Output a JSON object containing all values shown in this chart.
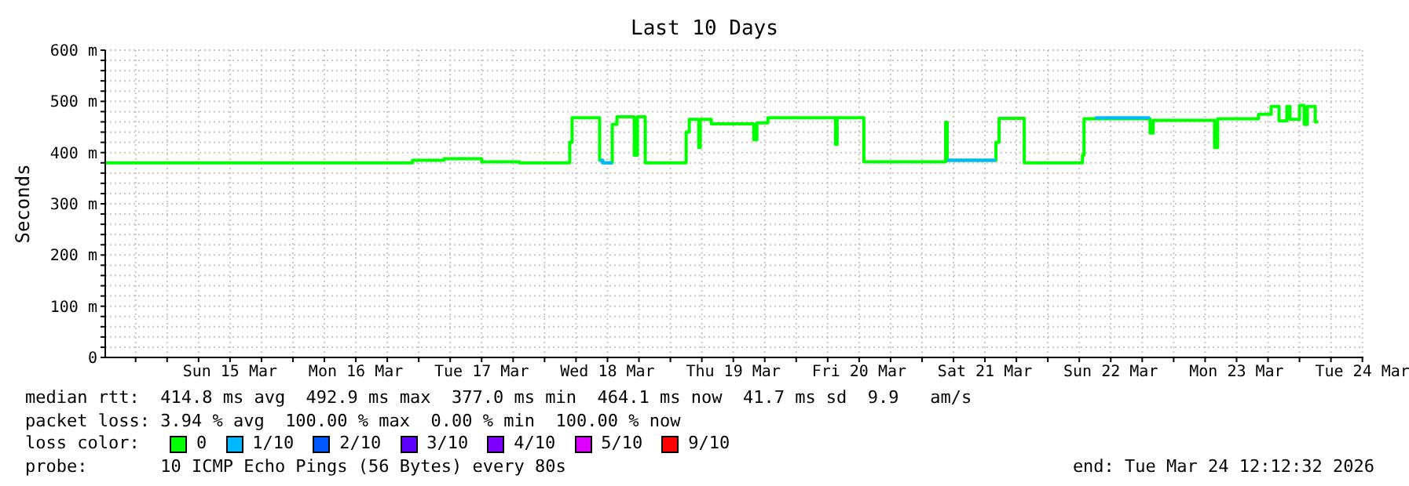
{
  "chart_data": {
    "type": "step",
    "title": "Last 10 Days",
    "ylabel": "Seconds",
    "legend_title": "loss color:",
    "legend": "bottom",
    "grid": true,
    "xlim": [
      "2026-03-14T12:12",
      "2026-03-24T12:12"
    ],
    "xticks": [
      {
        "value": "2026-03-14T18:00",
        "label": null
      },
      {
        "value": "2026-03-15T00:00",
        "label": null
      },
      {
        "value": "2026-03-15T06:00",
        "label": null
      },
      {
        "value": "2026-03-15T12:00",
        "label": "Sun 15 Mar"
      },
      {
        "value": "2026-03-15T18:00",
        "label": null
      },
      {
        "value": "2026-03-16T00:00",
        "label": null
      },
      {
        "value": "2026-03-16T06:00",
        "label": null
      },
      {
        "value": "2026-03-16T12:00",
        "label": "Mon 16 Mar"
      },
      {
        "value": "2026-03-16T18:00",
        "label": null
      },
      {
        "value": "2026-03-17T00:00",
        "label": null
      },
      {
        "value": "2026-03-17T06:00",
        "label": null
      },
      {
        "value": "2026-03-17T12:00",
        "label": "Tue 17 Mar"
      },
      {
        "value": "2026-03-17T18:00",
        "label": null
      },
      {
        "value": "2026-03-18T00:00",
        "label": null
      },
      {
        "value": "2026-03-18T06:00",
        "label": null
      },
      {
        "value": "2026-03-18T12:00",
        "label": "Wed 18 Mar"
      },
      {
        "value": "2026-03-18T18:00",
        "label": null
      },
      {
        "value": "2026-03-19T00:00",
        "label": null
      },
      {
        "value": "2026-03-19T06:00",
        "label": null
      },
      {
        "value": "2026-03-19T12:00",
        "label": "Thu 19 Mar"
      },
      {
        "value": "2026-03-19T18:00",
        "label": null
      },
      {
        "value": "2026-03-20T00:00",
        "label": null
      },
      {
        "value": "2026-03-20T06:00",
        "label": null
      },
      {
        "value": "2026-03-20T12:00",
        "label": "Fri 20 Mar"
      },
      {
        "value": "2026-03-20T18:00",
        "label": null
      },
      {
        "value": "2026-03-21T00:00",
        "label": null
      },
      {
        "value": "2026-03-21T06:00",
        "label": null
      },
      {
        "value": "2026-03-21T12:00",
        "label": "Sat 21 Mar"
      },
      {
        "value": "2026-03-21T18:00",
        "label": null
      },
      {
        "value": "2026-03-22T00:00",
        "label": null
      },
      {
        "value": "2026-03-22T06:00",
        "label": null
      },
      {
        "value": "2026-03-22T12:00",
        "label": "Sun 22 Mar"
      },
      {
        "value": "2026-03-22T18:00",
        "label": null
      },
      {
        "value": "2026-03-23T00:00",
        "label": null
      },
      {
        "value": "2026-03-23T06:00",
        "label": null
      },
      {
        "value": "2026-03-23T12:00",
        "label": "Mon 23 Mar"
      },
      {
        "value": "2026-03-23T18:00",
        "label": null
      },
      {
        "value": "2026-03-24T00:00",
        "label": null
      },
      {
        "value": "2026-03-24T06:00",
        "label": null
      },
      {
        "value": "2026-03-24T12:00",
        "label": "Tue 24 Mar"
      }
    ],
    "ylim": [
      0,
      600
    ],
    "yticks": [
      {
        "value": 0,
        "label": "0"
      },
      {
        "value": 20,
        "label": null
      },
      {
        "value": 40,
        "label": null
      },
      {
        "value": 60,
        "label": null
      },
      {
        "value": 80,
        "label": null
      },
      {
        "value": 100,
        "label": "100 m"
      },
      {
        "value": 120,
        "label": null
      },
      {
        "value": 140,
        "label": null
      },
      {
        "value": 160,
        "label": null
      },
      {
        "value": 180,
        "label": null
      },
      {
        "value": 200,
        "label": "200 m"
      },
      {
        "value": 220,
        "label": null
      },
      {
        "value": 240,
        "label": null
      },
      {
        "value": 260,
        "label": null
      },
      {
        "value": 280,
        "label": null
      },
      {
        "value": 300,
        "label": "300 m"
      },
      {
        "value": 320,
        "label": null
      },
      {
        "value": 340,
        "label": null
      },
      {
        "value": 360,
        "label": null
      },
      {
        "value": 380,
        "label": null
      },
      {
        "value": 400,
        "label": "400 m"
      },
      {
        "value": 420,
        "label": null
      },
      {
        "value": 440,
        "label": null
      },
      {
        "value": 460,
        "label": null
      },
      {
        "value": 480,
        "label": null
      },
      {
        "value": 500,
        "label": "500 m"
      },
      {
        "value": 520,
        "label": null
      },
      {
        "value": 540,
        "label": null
      },
      {
        "value": 560,
        "label": null
      },
      {
        "value": 580,
        "label": null
      },
      {
        "value": 600,
        "label": "600 m"
      }
    ],
    "series": [
      {
        "name": "0",
        "color": "#00ff00",
        "x": [
          "2026-03-14T12:18",
          "2026-03-16T22:48",
          "2026-03-17T04:48",
          "2026-03-17T12:00",
          "2026-03-17T19:12",
          "2026-03-18T04:48",
          "2026-03-18T05:15",
          "2026-03-18T10:30",
          "2026-03-18T11:06",
          "2026-03-18T12:54",
          "2026-03-18T13:48",
          "2026-03-18T17:06",
          "2026-03-18T17:42",
          "2026-03-18T19:12",
          "2026-03-19T03:00",
          "2026-03-19T03:36",
          "2026-03-19T05:24",
          "2026-03-19T05:42",
          "2026-03-19T07:48",
          "2026-03-19T15:54",
          "2026-03-19T16:30",
          "2026-03-19T18:36",
          "2026-03-20T07:30",
          "2026-03-20T07:48",
          "2026-03-20T12:54",
          "2026-03-21T04:30",
          "2026-03-21T04:48",
          "2026-03-21T14:06",
          "2026-03-21T14:42",
          "2026-03-21T19:30",
          "2026-03-22T06:36",
          "2026-03-22T06:54",
          "2026-03-22T19:30",
          "2026-03-22T20:06",
          "2026-03-23T07:48",
          "2026-03-23T08:24",
          "2026-03-23T16:12",
          "2026-03-23T18:36",
          "2026-03-23T20:06",
          "2026-03-23T21:36",
          "2026-03-23T22:12",
          "2026-03-24T00:00",
          "2026-03-24T00:54",
          "2026-03-24T01:30",
          "2026-03-24T03:00",
          "2026-03-24T03:36"
        ],
        "values": [
          380,
          385,
          388,
          382,
          380,
          420,
          468,
          385,
          380,
          455,
          470,
          395,
          470,
          380,
          440,
          465,
          410,
          465,
          456,
          425,
          458,
          468,
          416,
          468,
          382,
          459,
          385,
          420,
          467,
          380,
          395,
          466,
          438,
          463,
          410,
          466,
          475,
          490,
          462,
          490,
          465,
          492,
          455,
          490,
          460,
          460
        ]
      },
      {
        "name": "1/10",
        "color": "#00b8ff",
        "x": [
          "2026-03-18T10:30",
          "2026-03-18T11:06",
          "2026-03-18T12:54",
          "2026-03-18T13:00",
          "2026-03-21T04:48",
          "2026-03-21T14:06",
          "2026-03-21T14:12",
          "2026-03-22T09:00",
          "2026-03-22T19:30"
        ],
        "values": [
          385,
          380,
          380,
          null,
          385,
          385,
          null,
          468,
          468
        ]
      },
      {
        "name": "2/10",
        "color": "#0059ff"
      },
      {
        "name": "3/10",
        "color": "#5e00ff"
      },
      {
        "name": "4/10",
        "color": "#7e00ff"
      },
      {
        "name": "5/10",
        "color": "#dd00ff"
      },
      {
        "name": "9/10",
        "color": "#ff0000"
      }
    ],
    "annotations": [
      "median rtt:  414.8 ms avg  492.9 ms max  377.0 ms min  464.1 ms now  41.7 ms sd  9.9   am/s",
      "packet loss: 3.94 % avg  100.00 % max  0.00 % min  100.00 % now",
      "probe:       10 ICMP Echo Pings (56 Bytes) every 80s",
      "end: Tue Mar 24 12:12:32 2026"
    ]
  }
}
